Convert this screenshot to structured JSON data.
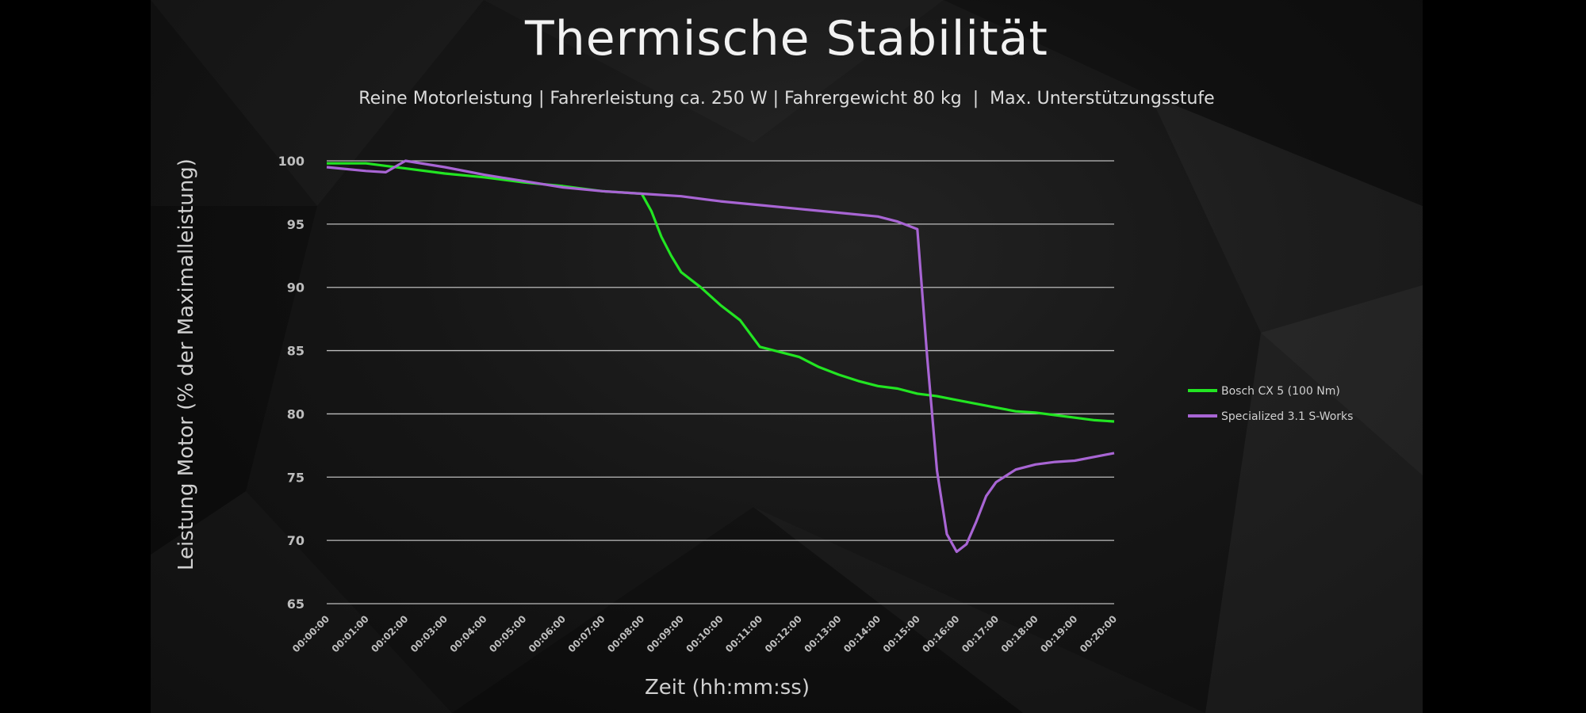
{
  "chart_data": {
    "type": "line",
    "title": "Thermische Stabilität",
    "subtitle": "Reine Motorleistung | Fahrerleistung ca. 250 W | Fahrergewicht 80 kg  |  Max. Unterstützungsstufe",
    "xlabel": "Zeit (hh:mm:ss)",
    "ylabel": "Leistung Motor (% der Maximalleistung)",
    "ylim": [
      65,
      100
    ],
    "xlim_minutes": [
      0,
      20
    ],
    "yticks": [
      100,
      95,
      90,
      85,
      80,
      75,
      70,
      65
    ],
    "xticks": [
      "00:00:00",
      "00:01:00",
      "00:02:00",
      "00:03:00",
      "00:04:00",
      "00:05:00",
      "00:06:00",
      "00:07:00",
      "00:08:00",
      "00:09:00",
      "00:10:00",
      "00:11:00",
      "00:12:00",
      "00:13:00",
      "00:14:00",
      "00:15:00",
      "00:16:00",
      "00:17:00",
      "00:18:00",
      "00:19:00",
      "00:20:00"
    ],
    "grid": true,
    "legend_position": "right",
    "series": [
      {
        "name": "Bosch CX 5 (100 Nm)",
        "color": "#22e522",
        "x": [
          "00:00:00",
          "00:01:00",
          "00:02:00",
          "00:03:00",
          "00:04:00",
          "00:05:00",
          "00:06:00",
          "00:07:00",
          "00:07:30",
          "00:08:00",
          "00:08:15",
          "00:08:30",
          "00:08:45",
          "00:09:00",
          "00:09:30",
          "00:10:00",
          "00:10:30",
          "00:11:00",
          "00:11:30",
          "00:12:00",
          "00:12:30",
          "00:13:00",
          "00:13:30",
          "00:14:00",
          "00:14:30",
          "00:15:00",
          "00:15:30",
          "00:16:00",
          "00:16:30",
          "00:17:00",
          "00:17:30",
          "00:18:00",
          "00:18:30",
          "00:19:00",
          "00:19:30",
          "00:20:00"
        ],
        "values": [
          99.8,
          99.8,
          99.4,
          99.0,
          98.7,
          98.3,
          98.0,
          97.6,
          97.5,
          97.4,
          96.0,
          94.0,
          92.5,
          91.2,
          90.0,
          88.6,
          87.4,
          85.3,
          84.9,
          84.5,
          83.7,
          83.1,
          82.6,
          82.2,
          82.0,
          81.6,
          81.4,
          81.1,
          80.8,
          80.5,
          80.2,
          80.1,
          79.9,
          79.7,
          79.5,
          79.4
        ]
      },
      {
        "name": "Specialized  3.1 S-Works",
        "color": "#a865d4",
        "x": [
          "00:00:00",
          "00:01:00",
          "00:01:30",
          "00:02:00",
          "00:03:00",
          "00:04:00",
          "00:05:00",
          "00:06:00",
          "00:07:00",
          "00:08:00",
          "00:09:00",
          "00:10:00",
          "00:11:00",
          "00:12:00",
          "00:13:00",
          "00:14:00",
          "00:14:30",
          "00:15:00",
          "00:15:15",
          "00:15:30",
          "00:15:45",
          "00:16:00",
          "00:16:15",
          "00:16:30",
          "00:16:45",
          "00:17:00",
          "00:17:30",
          "00:18:00",
          "00:18:30",
          "00:19:00",
          "00:19:30",
          "00:20:00"
        ],
        "values": [
          99.5,
          99.2,
          99.1,
          100.0,
          99.5,
          98.9,
          98.4,
          97.9,
          97.6,
          97.4,
          97.2,
          96.8,
          96.5,
          96.2,
          95.9,
          95.6,
          95.2,
          94.6,
          84.5,
          75.5,
          70.5,
          69.1,
          69.7,
          71.5,
          73.5,
          74.6,
          75.6,
          76.0,
          76.2,
          76.3,
          76.6,
          76.9
        ]
      }
    ]
  }
}
